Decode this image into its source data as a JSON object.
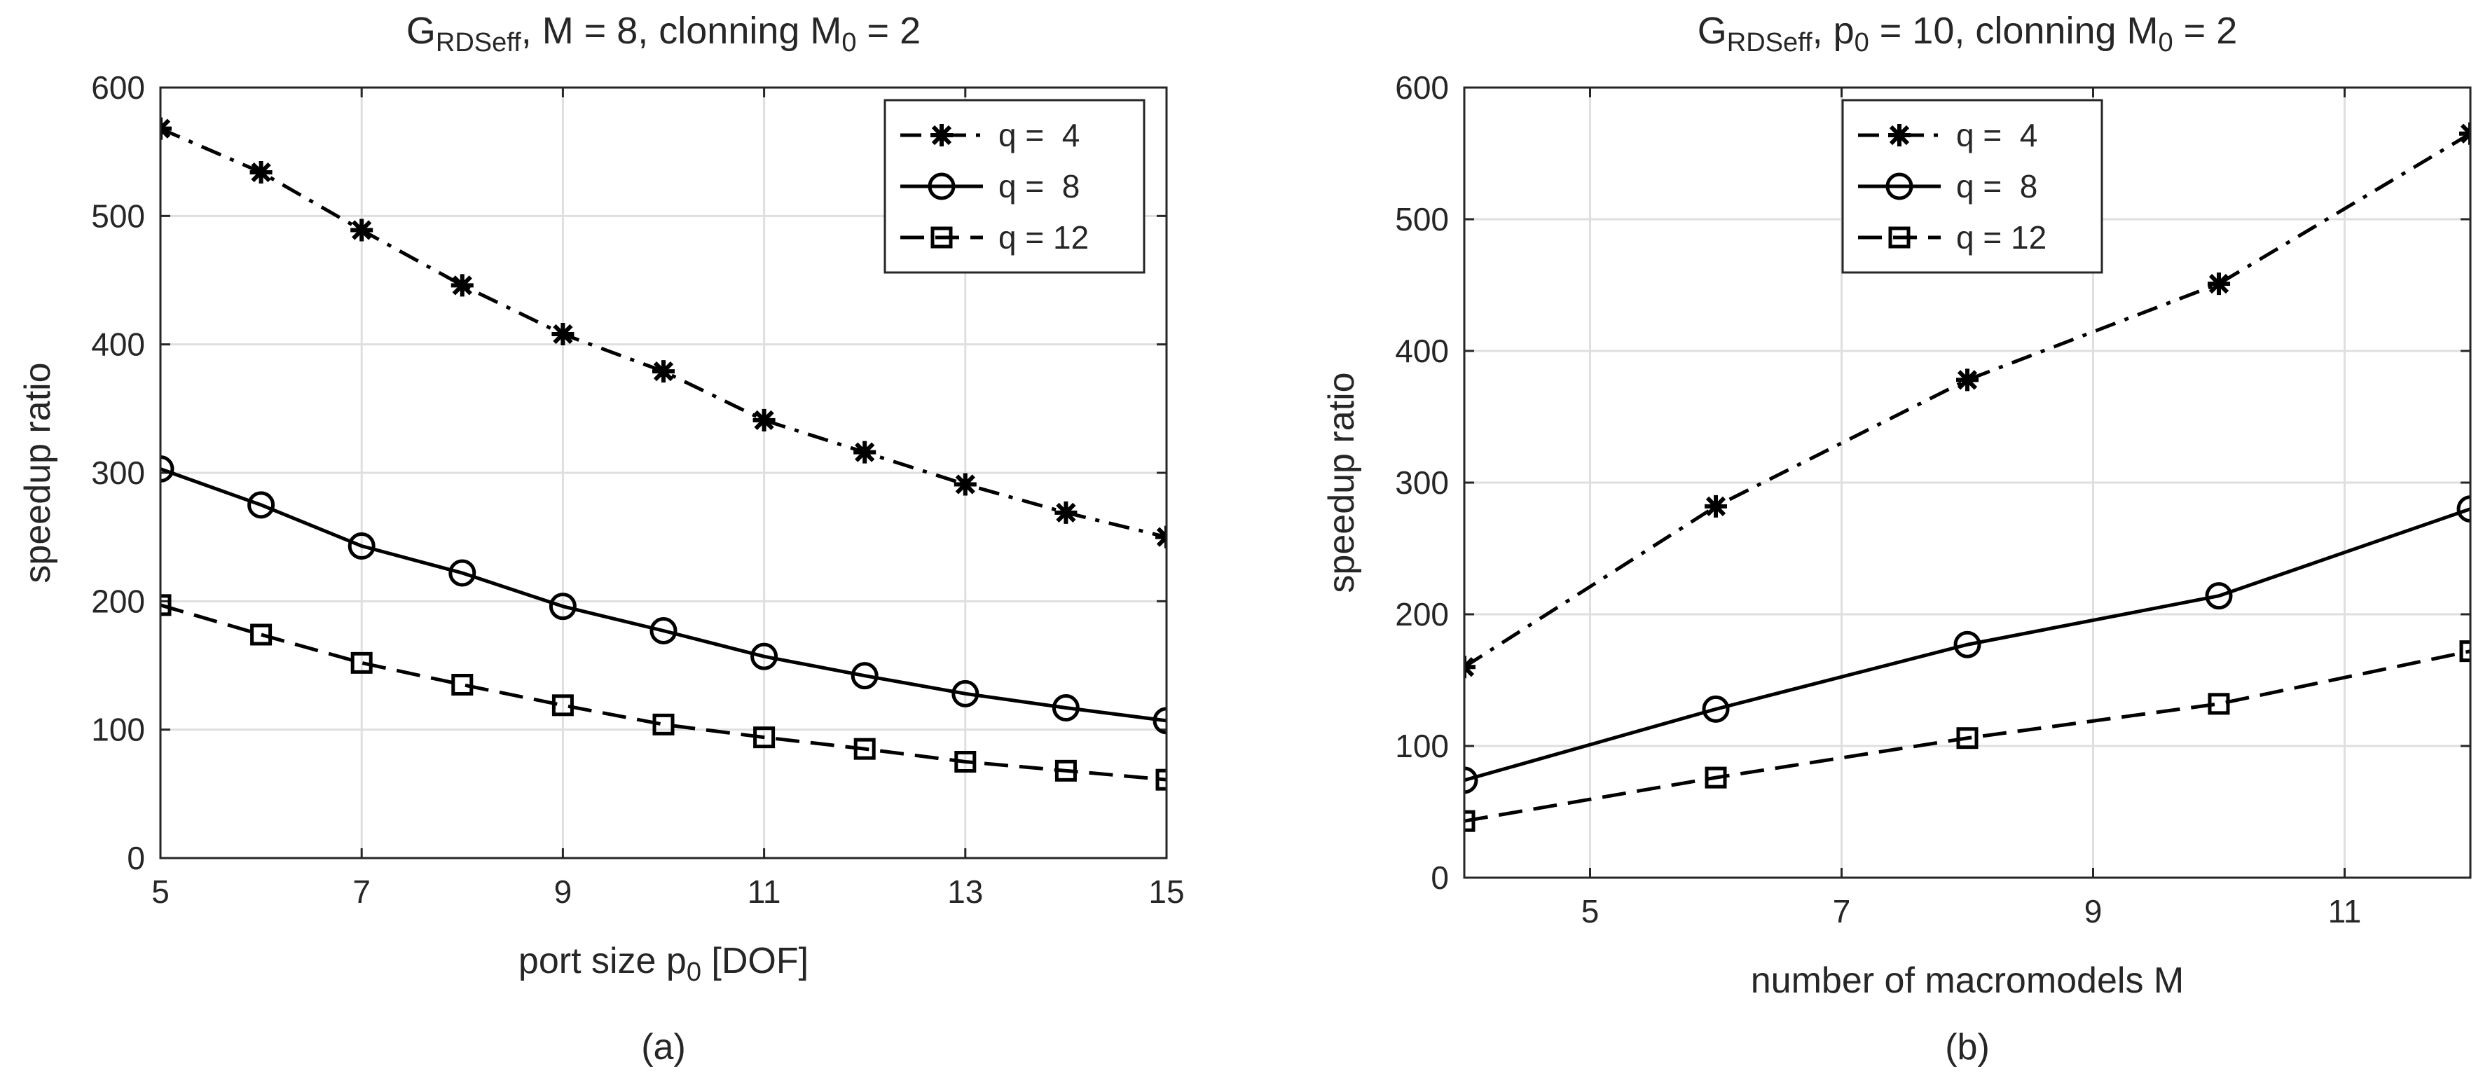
{
  "chart_data": [
    {
      "type": "line",
      "title": {
        "base": "G",
        "sub": "RDSeff",
        "mid": ", M = 8, clonning M",
        "sub2": "0",
        "tail": " = 2"
      },
      "xlabel": {
        "base": "port size p",
        "sub": "0",
        "tail": " [DOF]"
      },
      "ylabel": "speedup ratio",
      "caption": "(a)",
      "xlim": [
        5,
        15
      ],
      "ylim": [
        0,
        600
      ],
      "xticks": [
        "5",
        "7",
        "9",
        "11",
        "13",
        "15"
      ],
      "yticks": [
        "0",
        "100",
        "200",
        "300",
        "400",
        "500",
        "600"
      ],
      "grid": true,
      "legend_position": "top-right",
      "x": [
        5,
        6,
        7,
        8,
        9,
        10,
        11,
        12,
        13,
        14,
        15
      ],
      "series": [
        {
          "name": "q =  4",
          "marker": "asterisk",
          "linestyle": "dashdot",
          "values": [
            568,
            534,
            489,
            446,
            408,
            379,
            341,
            316,
            291,
            269,
            250
          ]
        },
        {
          "name": "q =  8",
          "marker": "circle",
          "linestyle": "solid",
          "values": [
            303,
            275,
            243,
            222,
            196,
            177,
            157,
            142,
            128,
            117,
            107
          ]
        },
        {
          "name": "q = 12",
          "marker": "square",
          "linestyle": "dashed",
          "values": [
            197,
            174,
            152,
            135,
            119,
            104,
            94,
            85,
            75,
            68,
            61
          ]
        }
      ]
    },
    {
      "type": "line",
      "title": {
        "base": "G",
        "sub": "RDSeff",
        "mid": ", p",
        "sub2": "0",
        "tail": " = 10, clonning M",
        "sub3": "0",
        "tail2": " = 2"
      },
      "xlabel": {
        "base": "number of macromodels M"
      },
      "ylabel": "speedup ratio",
      "caption": "(b)",
      "xlim": [
        4,
        12
      ],
      "ylim": [
        0,
        600
      ],
      "xticks": [
        "5",
        "7",
        "9",
        "11"
      ],
      "yticks": [
        "0",
        "100",
        "200",
        "300",
        "400",
        "500",
        "600"
      ],
      "grid": true,
      "legend_position": "top-left",
      "x": [
        4,
        6,
        8,
        10,
        12
      ],
      "series": [
        {
          "name": "q =  4",
          "marker": "asterisk",
          "linestyle": "dashdot",
          "values": [
            160,
            282,
            378,
            451,
            565
          ]
        },
        {
          "name": "q =  8",
          "marker": "circle",
          "linestyle": "solid",
          "values": [
            74,
            128,
            177,
            214,
            280
          ]
        },
        {
          "name": "q = 12",
          "marker": "square",
          "linestyle": "dashed",
          "values": [
            43,
            76,
            106,
            132,
            172
          ]
        }
      ]
    }
  ]
}
